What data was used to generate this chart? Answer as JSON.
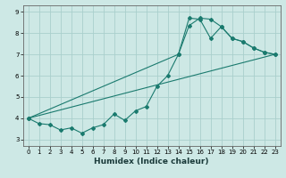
{
  "xlabel": "Humidex (Indice chaleur)",
  "ylabel": "",
  "bg_color": "#cde8e5",
  "grid_color": "#aacfcc",
  "line_color": "#1a7a6e",
  "xlim": [
    -0.5,
    23.5
  ],
  "ylim": [
    2.7,
    9.3
  ],
  "xticks": [
    0,
    1,
    2,
    3,
    4,
    5,
    6,
    7,
    8,
    9,
    10,
    11,
    12,
    13,
    14,
    15,
    16,
    17,
    18,
    19,
    20,
    21,
    22,
    23
  ],
  "yticks": [
    3,
    4,
    5,
    6,
    7,
    8,
    9
  ],
  "series1_x": [
    0,
    1,
    2,
    3,
    4,
    5,
    6,
    7,
    8,
    9,
    10,
    11,
    12,
    13,
    14,
    15,
    16,
    17,
    18,
    19,
    20,
    21,
    22,
    23
  ],
  "series1_y": [
    4.0,
    3.75,
    3.7,
    3.45,
    3.55,
    3.3,
    3.55,
    3.7,
    4.2,
    3.9,
    4.35,
    4.55,
    5.5,
    6.0,
    7.0,
    8.35,
    8.7,
    8.65,
    8.3,
    7.75,
    7.6,
    7.3,
    7.1,
    7.0
  ],
  "series2_x": [
    0,
    23
  ],
  "series2_y": [
    4.0,
    7.0
  ],
  "series3_x": [
    0,
    14,
    15,
    16,
    17,
    18,
    19,
    20,
    21,
    22,
    23
  ],
  "series3_y": [
    4.0,
    7.0,
    8.7,
    8.65,
    7.75,
    8.3,
    7.75,
    7.6,
    7.3,
    7.1,
    7.0
  ],
  "tick_fontsize": 5,
  "xlabel_fontsize": 6.5,
  "marker_size": 2.0,
  "line_width": 0.8
}
